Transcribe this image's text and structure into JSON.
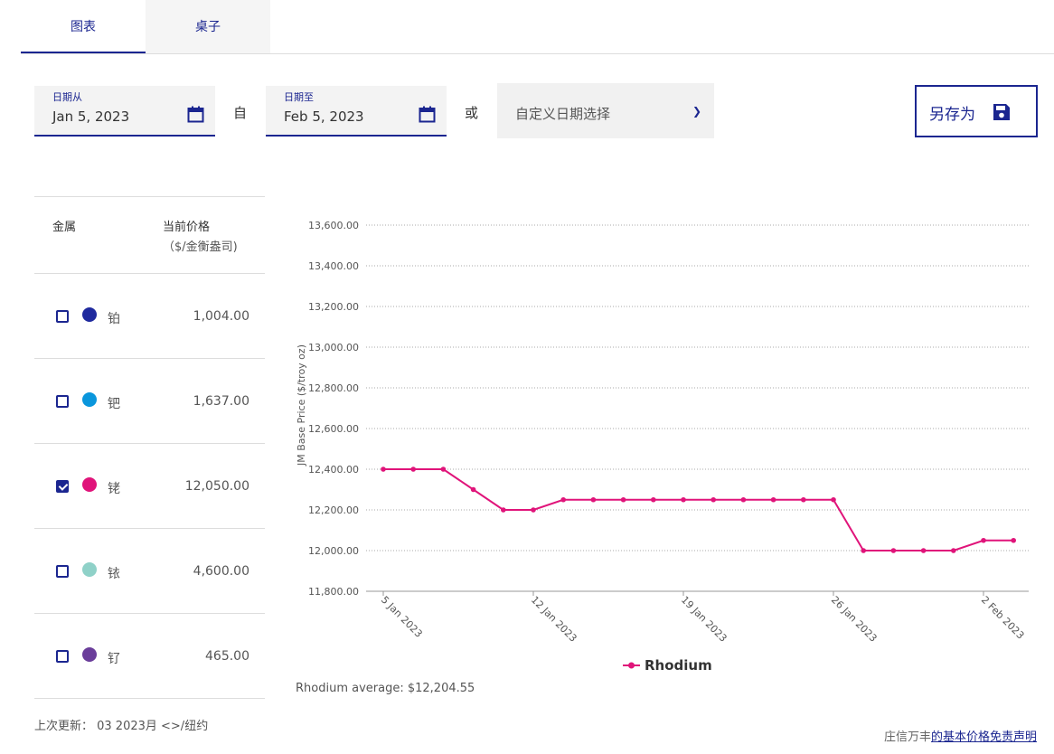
{
  "tabs": [
    {
      "label": "图表"
    },
    {
      "label": "桌子"
    }
  ],
  "filters": {
    "date_from_label": "日期从",
    "date_from": "Jan 5, 2023",
    "sep1": "自",
    "date_to_label": "日期至",
    "date_to": "Feb 5, 2023",
    "sep2": "或",
    "custom_select": "自定义日期选择",
    "save_as": "另存为"
  },
  "table": {
    "col_metal": "金属",
    "col_price": "当前价格",
    "col_unit": "（$/金衡盎司)",
    "rows": [
      {
        "name": "铂",
        "price": "1,004.00",
        "color": "#1f2a9e",
        "checked": false
      },
      {
        "name": "钯",
        "price": "1,637.00",
        "color": "#0a96dc",
        "checked": false
      },
      {
        "name": "铑",
        "price": "12,050.00",
        "color": "#e0147a",
        "checked": true
      },
      {
        "name": "铱",
        "price": "4,600.00",
        "color": "#8fd1c8",
        "checked": false
      },
      {
        "name": "钌",
        "price": "465.00",
        "color": "#6a3d9a",
        "checked": false
      }
    ]
  },
  "last_update": "上次更新：  03 2023月 <>/纽约",
  "disclaimer_prefix": "庄信万丰",
  "disclaimer_link": "的基本价格免责声明",
  "average": "Rhodium average: $12,204.55",
  "chart_data": {
    "type": "line",
    "ylabel": "JM Base Price ($/troy oz)",
    "ylim": [
      11800,
      13600
    ],
    "yticks": [
      "11,800.00",
      "12,000.00",
      "12,200.00",
      "12,400.00",
      "12,600.00",
      "12,800.00",
      "13,000.00",
      "13,200.00",
      "13,400.00",
      "13,600.00"
    ],
    "x": [
      "5 Jan 2023",
      "6 Jan 2023",
      "9 Jan 2023",
      "10 Jan 2023",
      "11 Jan 2023",
      "12 Jan 2023",
      "13 Jan 2023",
      "16 Jan 2023",
      "17 Jan 2023",
      "18 Jan 2023",
      "19 Jan 2023",
      "20 Jan 2023",
      "23 Jan 2023",
      "24 Jan 2023",
      "25 Jan 2023",
      "26 Jan 2023",
      "27 Jan 2023",
      "30 Jan 2023",
      "31 Jan 2023",
      "1 Feb 2023",
      "2 Feb 2023",
      "3 Feb 2023"
    ],
    "xticks": [
      "5 Jan 2023",
      "12 Jan 2023",
      "19 Jan 2023",
      "26 Jan 2023",
      "2 Feb 2023"
    ],
    "grid": true,
    "legend": "bottom",
    "series": [
      {
        "name": "Rhodium",
        "color": "#e0147a",
        "values": [
          12400,
          12400,
          12400,
          12300,
          12200,
          12200,
          12250,
          12250,
          12250,
          12250,
          12250,
          12250,
          12250,
          12250,
          12250,
          12250,
          12000,
          12000,
          12000,
          12000,
          12050,
          12050
        ]
      }
    ]
  }
}
